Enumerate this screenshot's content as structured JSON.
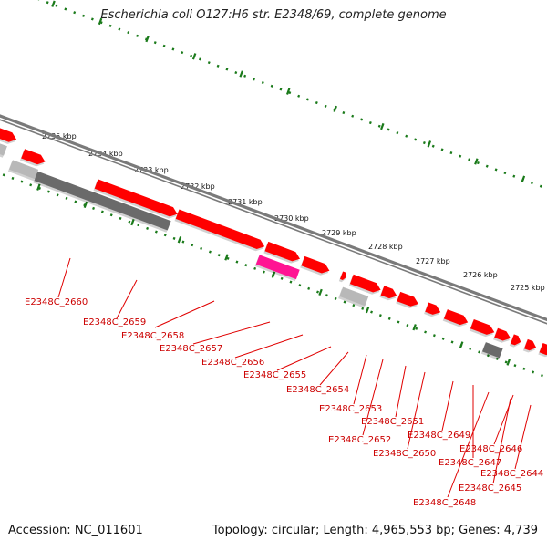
{
  "title": "Escherichia coli O127:H6 str. E2348/69, complete genome",
  "footer": {
    "accession": "Accession: NC_011601",
    "summary": "Topology: circular; Length: 4,965,553 bp; Genes: 4,739"
  },
  "colors": {
    "backbone": "#7a7a7a",
    "gene_forward": "#ff0000",
    "gene_reverse_pseudo": "#6a6a6a",
    "gene_light": "#b8b8b8",
    "gene_magenta": "#ff1493",
    "ticks": "#1a7a1a",
    "label_lines": "#e00000",
    "label_text": "#cc0000"
  },
  "scale": {
    "unit": "kbp",
    "ticks": [
      "2735 kbp",
      "2734 kbp",
      "2733 kbp",
      "2732 kbp",
      "2731 kbp",
      "2730 kbp",
      "2729 kbp",
      "2728 kbp",
      "2727 kbp",
      "2726 kbp",
      "2725 kbp"
    ]
  },
  "gene_labels": [
    "E2348C_2660",
    "E2348C_2659",
    "E2348C_2658",
    "E2348C_2657",
    "E2348C_2656",
    "E2348C_2655",
    "E2348C_2654",
    "E2348C_2653",
    "E2348C_2652",
    "E2348C_2651",
    "E2348C_2650",
    "E2348C_2649",
    "E2348C_2648",
    "E2348C_2647",
    "E2348C_2646",
    "E2348C_2645",
    "E2348C_2644"
  ]
}
